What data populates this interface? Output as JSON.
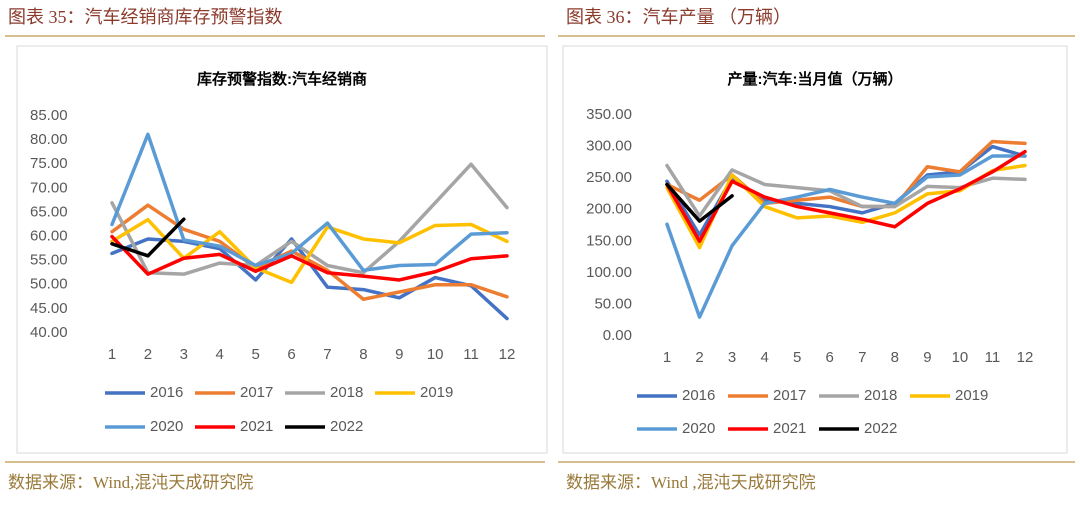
{
  "chart_data": [
    {
      "type": "line",
      "caption": "图表 35：汽车经销商库存预警指数",
      "title": "库存预警指数:汽车经销商",
      "source": "数据来源：Wind,混沌天成研究院",
      "categories": [
        "1",
        "2",
        "3",
        "4",
        "5",
        "6",
        "7",
        "8",
        "9",
        "10",
        "11",
        "12"
      ],
      "ylim": [
        40,
        85
      ],
      "yticks": [
        {
          "value": 40,
          "label": "40.00"
        },
        {
          "value": 45,
          "label": "45.00"
        },
        {
          "value": 50,
          "label": "50.00"
        },
        {
          "value": 55,
          "label": "55.00"
        },
        {
          "value": 60,
          "label": "60.00"
        },
        {
          "value": 65,
          "label": "65.00"
        },
        {
          "value": 70,
          "label": "70.00"
        },
        {
          "value": 75,
          "label": "75.00"
        },
        {
          "value": 80,
          "label": "80.00"
        },
        {
          "value": 85,
          "label": "85.00"
        }
      ],
      "series": [
        {
          "name": "2016",
          "color": "#4472c4",
          "values": [
            56.5,
            59.5,
            59,
            57.5,
            51,
            59.5,
            49.5,
            49,
            47.3,
            51.5,
            49.8,
            43
          ]
        },
        {
          "name": "2017",
          "color": "#ed7d31",
          "values": [
            61,
            66.5,
            61.5,
            59,
            53.5,
            57,
            53,
            47,
            48.5,
            50,
            50,
            47.5
          ]
        },
        {
          "name": "2018",
          "color": "#a5a5a5",
          "values": [
            67,
            52.5,
            52.2,
            54.5,
            54,
            59,
            54,
            52.5,
            59,
            67,
            75,
            66
          ]
        },
        {
          "name": "2019",
          "color": "#ffc000",
          "values": [
            59,
            63.5,
            55.5,
            61,
            53.5,
            50.5,
            62,
            59.5,
            58.7,
            62.3,
            62.5,
            59
          ]
        },
        {
          "name": "2020",
          "color": "#5b9bd5",
          "values": [
            62.5,
            81.2,
            59.3,
            58,
            54,
            56.5,
            62.8,
            53,
            54,
            54.2,
            60.5,
            60.8
          ]
        },
        {
          "name": "2021",
          "color": "#ff0000",
          "values": [
            60,
            52.2,
            55.5,
            56.3,
            52.8,
            56,
            52.5,
            51.8,
            51,
            52.7,
            55.4,
            56
          ]
        },
        {
          "name": "2022",
          "color": "#000000",
          "values": [
            58.5,
            56,
            63.6,
            null,
            null,
            null,
            null,
            null,
            null,
            null,
            null,
            null
          ]
        }
      ]
    },
    {
      "type": "line",
      "caption": "图表 36：汽车产量 （万辆）",
      "title": "产量:汽车:当月值（万辆）",
      "source": "数据来源：Wind ,混沌天成研究院",
      "categories": [
        "1",
        "2",
        "3",
        "4",
        "5",
        "6",
        "7",
        "8",
        "9",
        "10",
        "11",
        "12"
      ],
      "ylim": [
        0,
        350
      ],
      "yticks": [
        {
          "value": 0,
          "label": "0.00"
        },
        {
          "value": 50,
          "label": "50.00"
        },
        {
          "value": 100,
          "label": "100.00"
        },
        {
          "value": 150,
          "label": "150.00"
        },
        {
          "value": 200,
          "label": "200.00"
        },
        {
          "value": 250,
          "label": "250.00"
        },
        {
          "value": 300,
          "label": "300.00"
        },
        {
          "value": 350,
          "label": "350.00"
        }
      ],
      "series": [
        {
          "name": "2016",
          "color": "#4472c4",
          "values": [
            245,
            160,
            250,
            215,
            210,
            205,
            195,
            210,
            255,
            260,
            300,
            285
          ]
        },
        {
          "name": "2017",
          "color": "#ed7d31",
          "values": [
            240,
            215,
            255,
            210,
            215,
            220,
            205,
            205,
            268,
            260,
            308,
            305
          ]
        },
        {
          "name": "2018",
          "color": "#a5a5a5",
          "values": [
            270,
            190,
            263,
            240,
            235,
            230,
            205,
            205,
            237,
            235,
            250,
            248
          ]
        },
        {
          "name": "2019",
          "color": "#ffc000",
          "values": [
            235,
            140,
            255,
            205,
            187,
            190,
            180,
            195,
            225,
            230,
            262,
            270
          ]
        },
        {
          "name": "2020",
          "color": "#5b9bd5",
          "values": [
            177,
            30,
            143,
            210,
            220,
            232,
            220,
            210,
            252,
            255,
            285,
            285
          ]
        },
        {
          "name": "2021",
          "color": "#ff0000",
          "values": [
            240,
            150,
            245,
            220,
            205,
            195,
            185,
            173,
            210,
            233,
            260,
            292
          ]
        },
        {
          "name": "2022",
          "color": "#000000",
          "values": [
            240,
            182,
            222,
            null,
            null,
            null,
            null,
            null,
            null,
            null,
            null,
            null
          ]
        }
      ]
    }
  ]
}
